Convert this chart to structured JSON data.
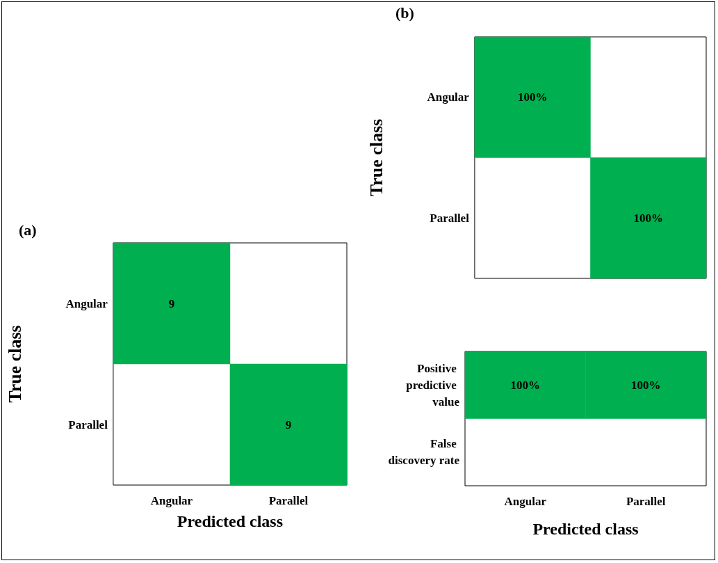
{
  "chart_data": [
    {
      "type": "heatmap",
      "title": "(a)",
      "xlabel": "Predicted class",
      "ylabel": "True class",
      "categories": [
        "Angular",
        "Parallel"
      ],
      "y_categories": [
        "Angular",
        "Parallel"
      ],
      "cells": [
        [
          9,
          null
        ],
        [
          null,
          9
        ]
      ],
      "color": "#00b050",
      "data_labels": true
    },
    {
      "type": "heatmap",
      "title": "(b)",
      "ylabel": "True class",
      "categories": [
        "Angular",
        "Parallel"
      ],
      "y_categories": [
        "Angular",
        "Parallel"
      ],
      "cells": [
        [
          100,
          null
        ],
        [
          null,
          100
        ]
      ],
      "cell_labels": [
        [
          "100%",
          null
        ],
        [
          null,
          "100%"
        ]
      ],
      "color": "#00b050",
      "tick_labels": "y"
    },
    {
      "type": "heatmap",
      "xlabel": "Predicted class",
      "categories": [
        "Angular",
        "Parallel"
      ],
      "y_categories": [
        "Positive predictive value",
        "False discovery rate"
      ],
      "cells": [
        [
          100,
          100
        ],
        [
          null,
          null
        ]
      ],
      "cell_labels": [
        [
          "100%",
          "100%"
        ],
        [
          null,
          null
        ]
      ],
      "color": "#00b050"
    }
  ]
}
